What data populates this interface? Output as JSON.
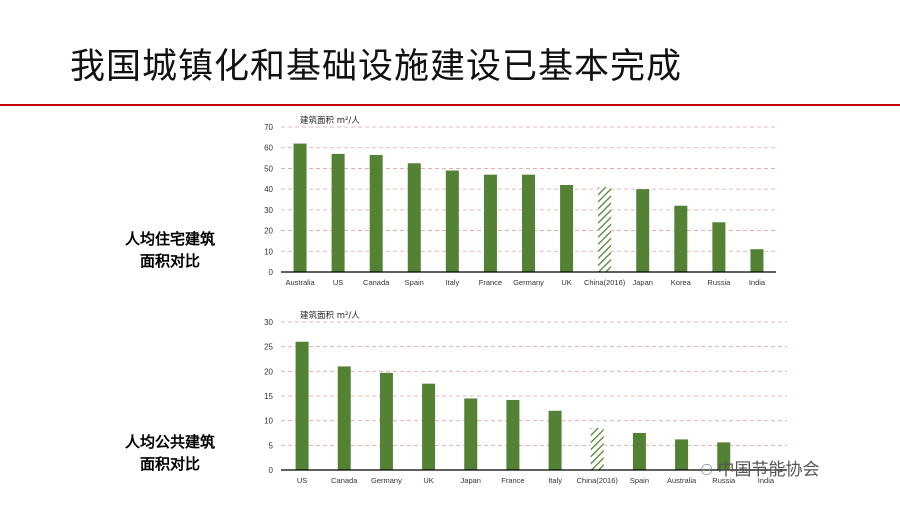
{
  "slide": {
    "title": "我国城镇化和基础设施建设已基本完成",
    "label_top": [
      "人均住宅建筑",
      "面积对比"
    ],
    "label_bottom": [
      "人均公共建筑",
      "面积对比"
    ],
    "watermark": "中国节能协会",
    "watermark_icon": "wechat-icon"
  },
  "colors": {
    "bar": "#548235",
    "title_rule": "#c00000",
    "grid": "#e3a3a3",
    "axis": "#000000"
  },
  "chart_data": [
    {
      "type": "bar",
      "ylabel": "建筑面积 m²/人",
      "ylim": [
        0,
        70
      ],
      "yticks": [
        0,
        10,
        20,
        30,
        40,
        50,
        60,
        70
      ],
      "grid": "horizontal dashed",
      "categories": [
        "Australia",
        "US",
        "Canada",
        "Spain",
        "Italy",
        "France",
        "Germany",
        "UK",
        "China(2016)",
        "Japan",
        "Korea",
        "Russia",
        "India"
      ],
      "values": [
        62,
        57,
        56.5,
        52.5,
        49,
        47,
        47,
        42,
        41,
        40,
        32,
        24,
        11
      ],
      "hatched": [
        "China(2016)"
      ]
    },
    {
      "type": "bar",
      "ylabel": "建筑面积 m²/人",
      "ylim": [
        0,
        30
      ],
      "yticks": [
        0,
        5,
        10,
        15,
        20,
        25,
        30
      ],
      "grid": "horizontal dashed",
      "categories": [
        "US",
        "Canada",
        "Germany",
        "UK",
        "Japan",
        "France",
        "Italy",
        "China(2016)",
        "Spain",
        "Australia",
        "Russia",
        "India"
      ],
      "values": [
        26,
        21,
        19.7,
        17.5,
        14.5,
        14.2,
        12,
        8.5,
        7.5,
        6.2,
        5.6,
        0
      ],
      "hatched": [
        "China(2016)"
      ]
    }
  ]
}
